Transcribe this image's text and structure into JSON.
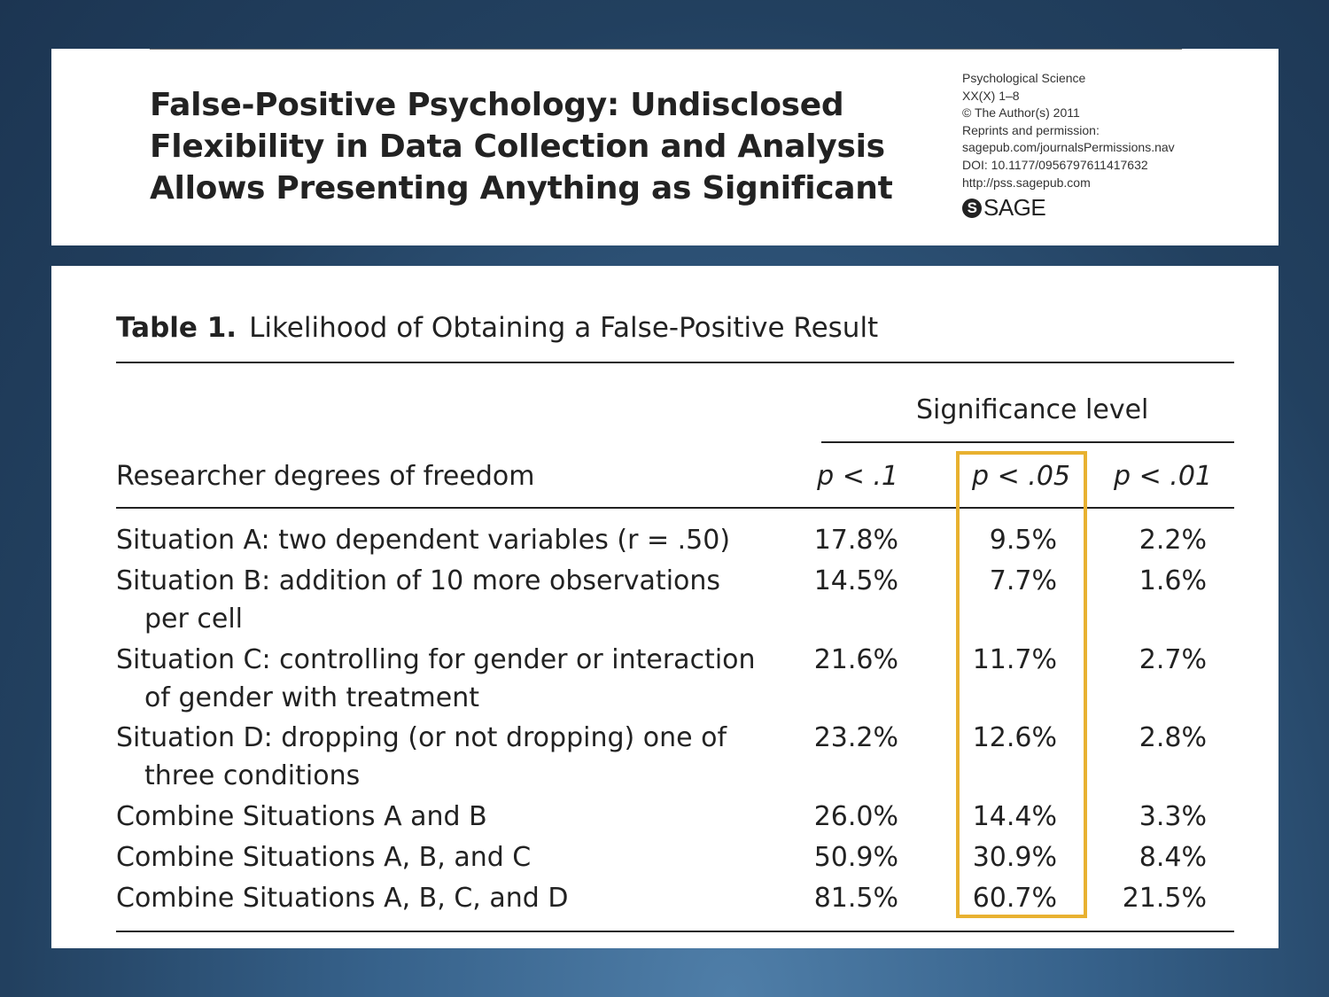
{
  "header": {
    "title_lines": [
      "False-Positive Psychology: Undisclosed",
      "Flexibility in Data Collection and Analysis",
      "Allows Presenting Anything as Significant"
    ],
    "meta_lines": [
      "Psychological Science",
      "XX(X) 1–8",
      "© The Author(s) 2011",
      "Reprints and permission:",
      "sagepub.com/journalsPermissions.nav",
      "DOI: 10.1177/0956797611417632",
      "http://pss.sagepub.com"
    ],
    "publisher_logo": "SAGE",
    "publisher_icon": "sage-s-icon"
  },
  "table": {
    "label": "Table 1.",
    "caption": "Likelihood of Obtaining a False-Positive Result",
    "group_header": "Significance level",
    "row_header": "Researcher degrees of freedom",
    "columns": [
      "p < .1",
      "p < .05",
      "p < .01"
    ],
    "rows": [
      {
        "label_lines": [
          "Situation A: two dependent variables (r = .50)"
        ],
        "values": [
          "17.8%",
          "9.5%",
          "2.2%"
        ]
      },
      {
        "label_lines": [
          "Situation B: addition of 10 more observations",
          "per cell"
        ],
        "values": [
          "14.5%",
          "7.7%",
          "1.6%"
        ]
      },
      {
        "label_lines": [
          "Situation C: controlling for gender or interaction",
          "of gender with treatment"
        ],
        "values": [
          "21.6%",
          "11.7%",
          "2.7%"
        ]
      },
      {
        "label_lines": [
          "Situation D: dropping (or not dropping) one of",
          "three conditions"
        ],
        "values": [
          "23.2%",
          "12.6%",
          "2.8%"
        ]
      },
      {
        "label_lines": [
          "Combine Situations A and B"
        ],
        "values": [
          "26.0%",
          "14.4%",
          "3.3%"
        ]
      },
      {
        "label_lines": [
          "Combine Situations A, B, and C"
        ],
        "values": [
          "50.9%",
          "30.9%",
          "8.4%"
        ]
      },
      {
        "label_lines": [
          "Combine Situations A, B, C, and D"
        ],
        "values": [
          "81.5%",
          "60.7%",
          "21.5%"
        ]
      }
    ],
    "highlighted_column": "p < .05",
    "highlight_color": "#e8b130"
  }
}
